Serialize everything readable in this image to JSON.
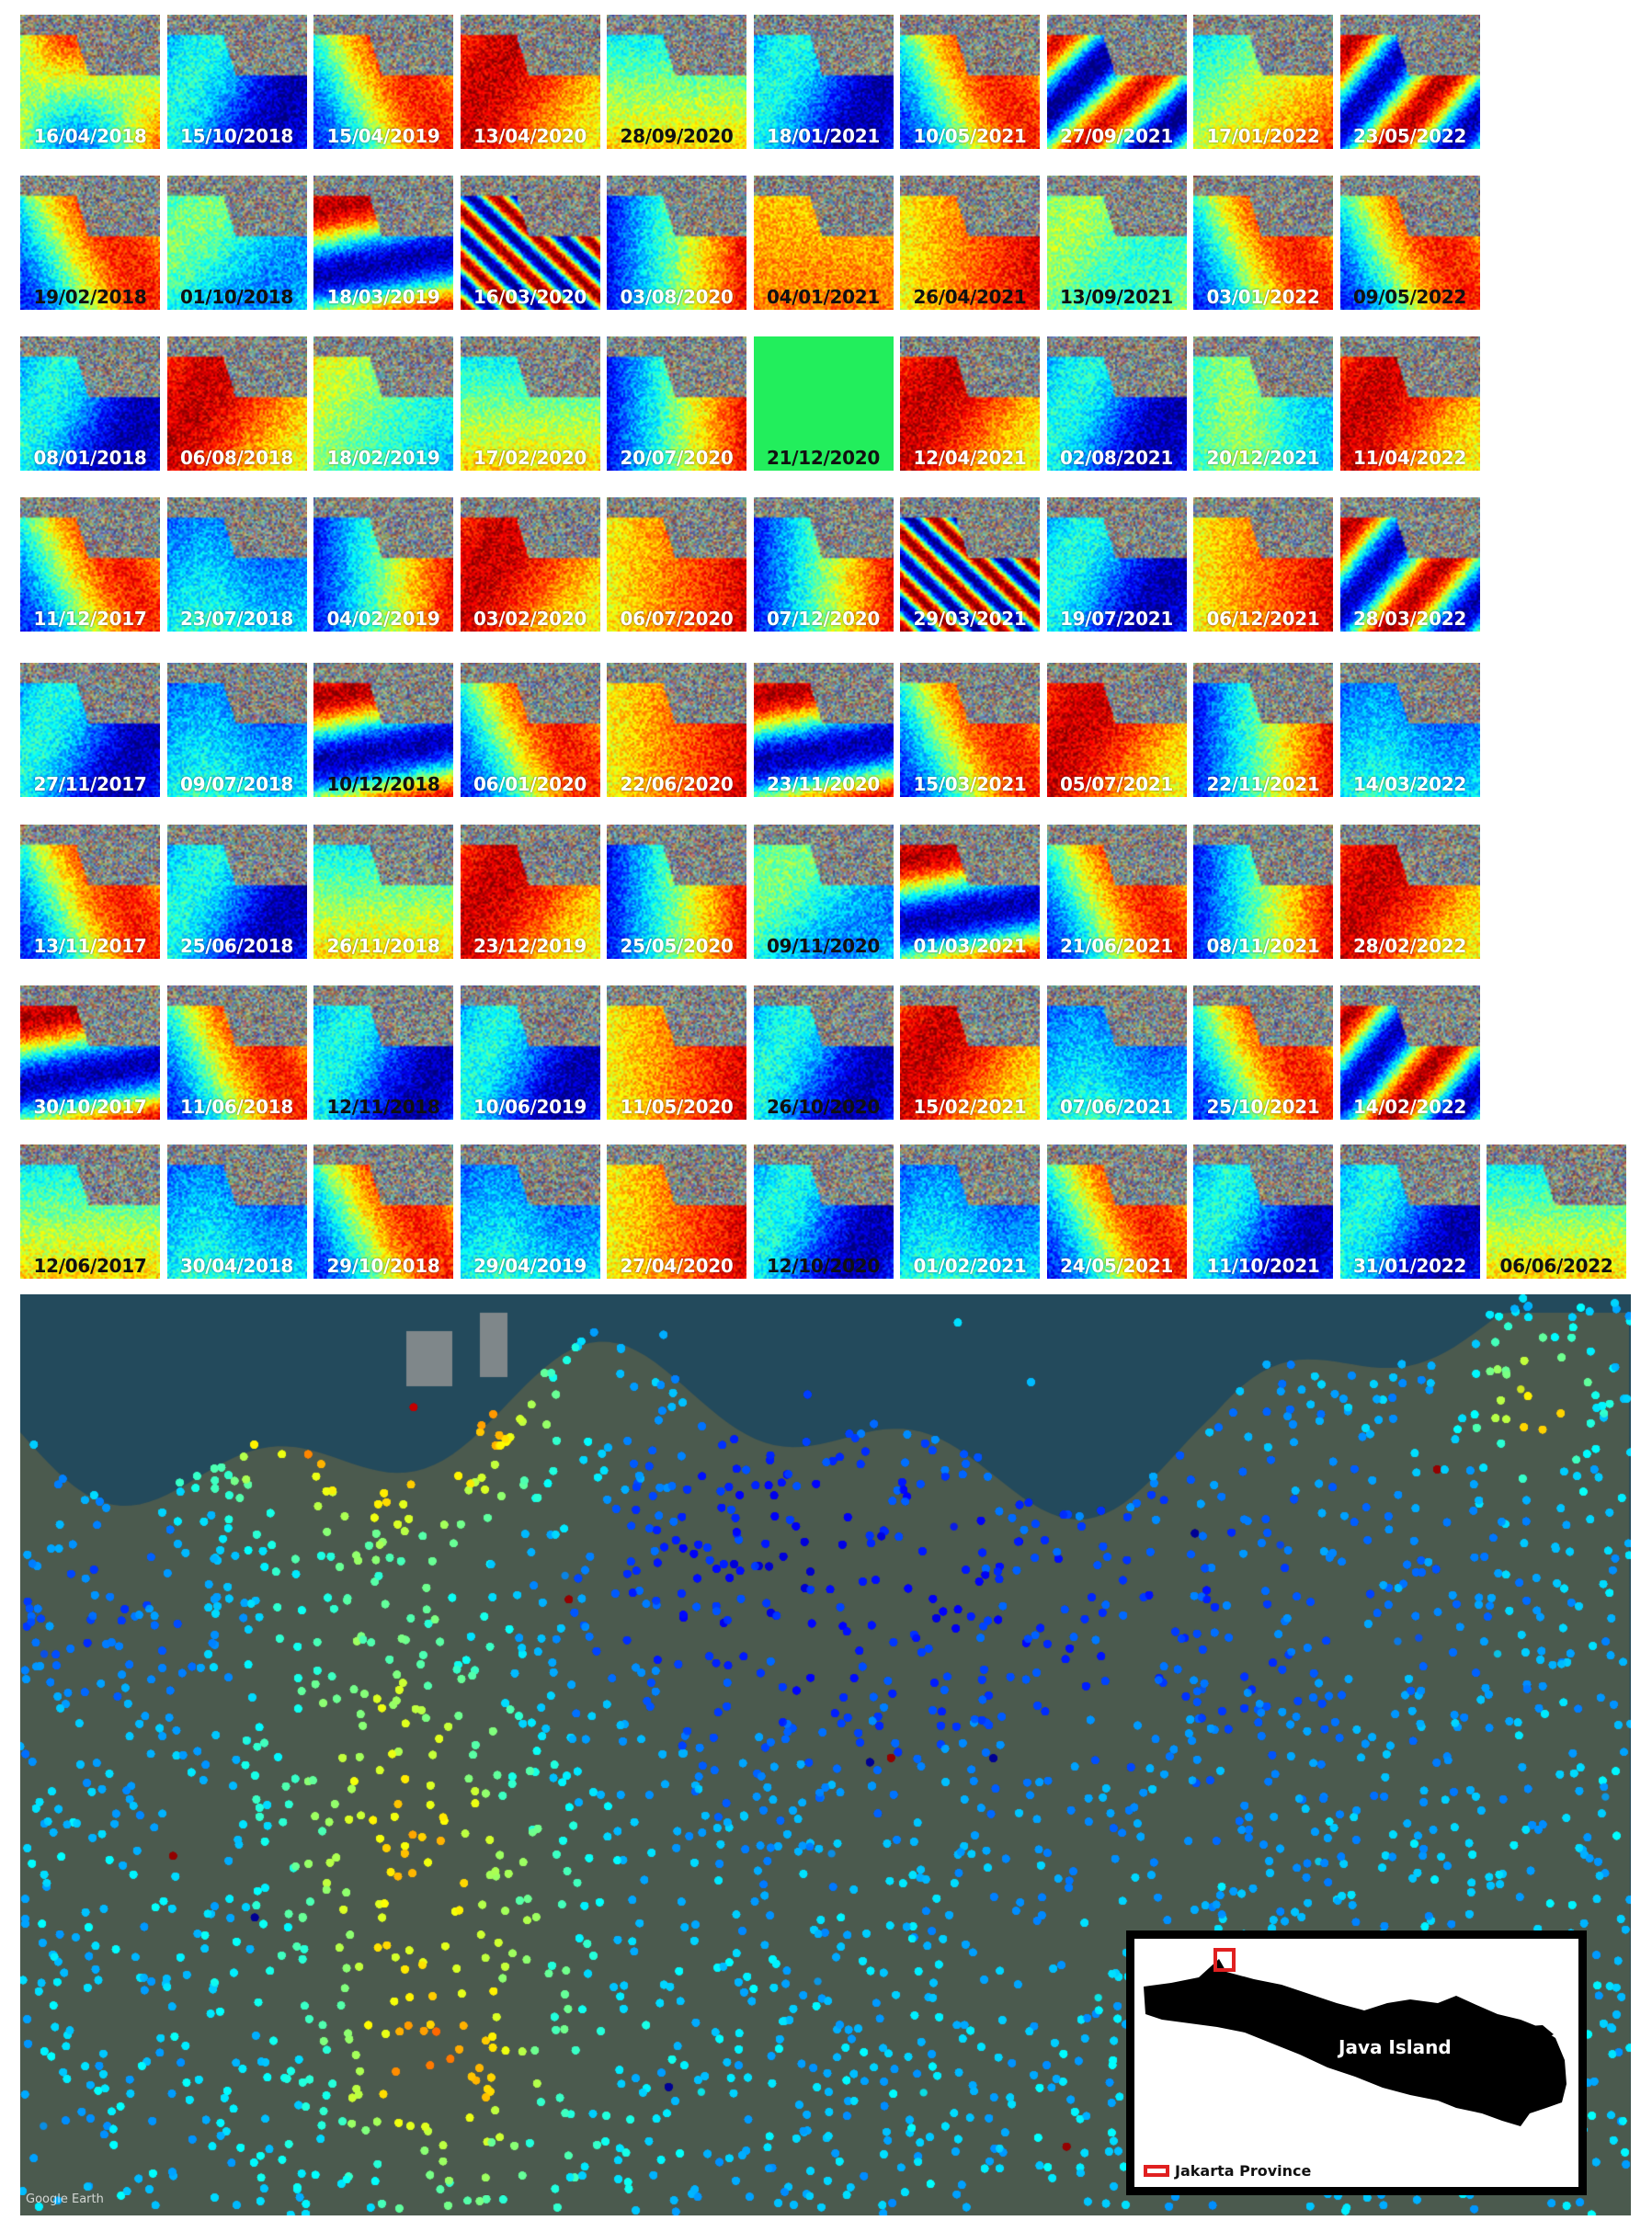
{
  "grid": {
    "rows": [
      {
        "tiles": [
          {
            "date": "16/04/2018",
            "style": "light",
            "pattern": "mixed-yellow"
          },
          {
            "date": "15/10/2018",
            "style": "light",
            "pattern": "cyan-blue"
          },
          {
            "date": "15/04/2019",
            "style": "light",
            "pattern": "red-blue"
          },
          {
            "date": "13/04/2020",
            "style": "light",
            "pattern": "red-orange"
          },
          {
            "date": "28/09/2020",
            "style": "dark",
            "pattern": "cyan-yellow"
          },
          {
            "date": "18/01/2021",
            "style": "light",
            "pattern": "cyan-blue"
          },
          {
            "date": "10/05/2021",
            "style": "light",
            "pattern": "red-blue"
          },
          {
            "date": "27/09/2021",
            "style": "light",
            "pattern": "band-diag"
          },
          {
            "date": "17/01/2022",
            "style": "light",
            "pattern": "cyan-yellow-red"
          },
          {
            "date": "23/05/2022",
            "style": "light",
            "pattern": "band-diag-red"
          }
        ]
      },
      {
        "tiles": [
          {
            "date": "19/02/2018",
            "style": "dark",
            "pattern": "red-blue"
          },
          {
            "date": "01/10/2018",
            "style": "dark",
            "pattern": "cyan-green"
          },
          {
            "date": "18/03/2019",
            "style": "light",
            "pattern": "band-horiz"
          },
          {
            "date": "16/03/2020",
            "style": "light",
            "pattern": "fringes"
          },
          {
            "date": "03/08/2020",
            "style": "light",
            "pattern": "blue-red"
          },
          {
            "date": "04/01/2021",
            "style": "dark",
            "pattern": "yellow"
          },
          {
            "date": "26/04/2021",
            "style": "dark",
            "pattern": "yellow-red"
          },
          {
            "date": "13/09/2021",
            "style": "dark",
            "pattern": "green"
          },
          {
            "date": "03/01/2022",
            "style": "light",
            "pattern": "red-blue"
          },
          {
            "date": "09/05/2022",
            "style": "dark",
            "pattern": "red-blue"
          }
        ]
      },
      {
        "tiles": [
          {
            "date": "08/01/2018",
            "style": "light",
            "pattern": "cyan-blue"
          },
          {
            "date": "06/08/2018",
            "style": "light",
            "pattern": "red-orange"
          },
          {
            "date": "18/02/2019",
            "style": "light",
            "pattern": "yellow-cyan"
          },
          {
            "date": "17/02/2020",
            "style": "light",
            "pattern": "cyan-yellow"
          },
          {
            "date": "20/07/2020",
            "style": "light",
            "pattern": "blue-red"
          },
          {
            "date": "21/12/2020",
            "style": "dark",
            "pattern": "solid-green"
          },
          {
            "date": "12/04/2021",
            "style": "light",
            "pattern": "red-orange"
          },
          {
            "date": "02/08/2021",
            "style": "light",
            "pattern": "cyan-blue"
          },
          {
            "date": "20/12/2021",
            "style": "light",
            "pattern": "green-cyan"
          },
          {
            "date": "11/04/2022",
            "style": "light",
            "pattern": "red-orange"
          }
        ]
      },
      {
        "tiles": [
          {
            "date": "11/12/2017",
            "style": "light",
            "pattern": "red-blue"
          },
          {
            "date": "23/07/2018",
            "style": "light",
            "pattern": "blue-cyan"
          },
          {
            "date": "04/02/2019",
            "style": "light",
            "pattern": "blue-red"
          },
          {
            "date": "03/02/2020",
            "style": "light",
            "pattern": "red-orange"
          },
          {
            "date": "06/07/2020",
            "style": "light",
            "pattern": "yellow-red"
          },
          {
            "date": "07/12/2020",
            "style": "light",
            "pattern": "blue-red"
          },
          {
            "date": "29/03/2021",
            "style": "light",
            "pattern": "fringes"
          },
          {
            "date": "19/07/2021",
            "style": "light",
            "pattern": "cyan-blue"
          },
          {
            "date": "06/12/2021",
            "style": "light",
            "pattern": "yellow-red"
          },
          {
            "date": "28/03/2022",
            "style": "light",
            "pattern": "band-diag-red"
          }
        ]
      },
      {
        "tiles": [
          {
            "date": "27/11/2017",
            "style": "light",
            "pattern": "cyan-blue"
          },
          {
            "date": "09/07/2018",
            "style": "light",
            "pattern": "blue-cyan"
          },
          {
            "date": "10/12/2018",
            "style": "dark",
            "pattern": "band-horiz"
          },
          {
            "date": "06/01/2020",
            "style": "light",
            "pattern": "red-blue"
          },
          {
            "date": "22/06/2020",
            "style": "light",
            "pattern": "yellow-red"
          },
          {
            "date": "23/11/2020",
            "style": "light",
            "pattern": "band-horiz"
          },
          {
            "date": "15/03/2021",
            "style": "light",
            "pattern": "red-blue"
          },
          {
            "date": "05/07/2021",
            "style": "light",
            "pattern": "red-orange"
          },
          {
            "date": "22/11/2021",
            "style": "light",
            "pattern": "blue-red"
          },
          {
            "date": "14/03/2022",
            "style": "light",
            "pattern": "blue-cyan"
          }
        ]
      },
      {
        "tiles": [
          {
            "date": "13/11/2017",
            "style": "light",
            "pattern": "red-blue"
          },
          {
            "date": "25/06/2018",
            "style": "light",
            "pattern": "cyan-blue"
          },
          {
            "date": "26/11/2018",
            "style": "light",
            "pattern": "cyan-yellow"
          },
          {
            "date": "23/12/2019",
            "style": "light",
            "pattern": "red-orange"
          },
          {
            "date": "25/05/2020",
            "style": "light",
            "pattern": "blue-red"
          },
          {
            "date": "09/11/2020",
            "style": "dark",
            "pattern": "cyan-green"
          },
          {
            "date": "01/03/2021",
            "style": "light",
            "pattern": "band-horiz"
          },
          {
            "date": "21/06/2021",
            "style": "light",
            "pattern": "red-blue"
          },
          {
            "date": "08/11/2021",
            "style": "light",
            "pattern": "blue-red"
          },
          {
            "date": "28/02/2022",
            "style": "light",
            "pattern": "red-orange"
          }
        ]
      },
      {
        "tiles": [
          {
            "date": "30/10/2017",
            "style": "light",
            "pattern": "band-horiz"
          },
          {
            "date": "11/06/2018",
            "style": "light",
            "pattern": "red-blue"
          },
          {
            "date": "12/11/2018",
            "style": "dark",
            "pattern": "cyan-blue"
          },
          {
            "date": "10/06/2019",
            "style": "light",
            "pattern": "cyan-blue"
          },
          {
            "date": "11/05/2020",
            "style": "light",
            "pattern": "yellow-red"
          },
          {
            "date": "26/10/2020",
            "style": "dark",
            "pattern": "cyan-blue"
          },
          {
            "date": "15/02/2021",
            "style": "light",
            "pattern": "red-orange"
          },
          {
            "date": "07/06/2021",
            "style": "light",
            "pattern": "blue-cyan"
          },
          {
            "date": "25/10/2021",
            "style": "light",
            "pattern": "red-blue"
          },
          {
            "date": "14/02/2022",
            "style": "light",
            "pattern": "band-diag-red"
          }
        ]
      },
      {
        "tiles": [
          {
            "date": "12/06/2017",
            "style": "dark",
            "pattern": "cyan-yellow"
          },
          {
            "date": "30/04/2018",
            "style": "light",
            "pattern": "blue-cyan"
          },
          {
            "date": "29/10/2018",
            "style": "light",
            "pattern": "red-blue"
          },
          {
            "date": "29/04/2019",
            "style": "light",
            "pattern": "blue-cyan"
          },
          {
            "date": "27/04/2020",
            "style": "light",
            "pattern": "yellow-red"
          },
          {
            "date": "12/10/2020",
            "style": "dark",
            "pattern": "cyan-blue"
          },
          {
            "date": "01/02/2021",
            "style": "light",
            "pattern": "blue-cyan"
          },
          {
            "date": "24/05/2021",
            "style": "light",
            "pattern": "red-blue"
          },
          {
            "date": "11/10/2021",
            "style": "light",
            "pattern": "cyan-blue"
          },
          {
            "date": "31/01/2022",
            "style": "light",
            "pattern": "cyan-blue"
          },
          {
            "date": "06/06/2022",
            "style": "dark",
            "pattern": "cyan-yellow"
          }
        ]
      }
    ]
  },
  "map": {
    "credit": "Google Earth",
    "inset": {
      "island_label": "Java Island",
      "legend_label": "Jakarta Province",
      "highlight_color": "#e02020"
    }
  },
  "colors": {
    "fringe_red": "#e4241c",
    "fringe_yellow": "#f5d21f",
    "fringe_green": "#34e060",
    "fringe_cyan": "#39c4e6",
    "fringe_blue": "#2340c8",
    "solid_tile_green": "#22ee5c"
  }
}
